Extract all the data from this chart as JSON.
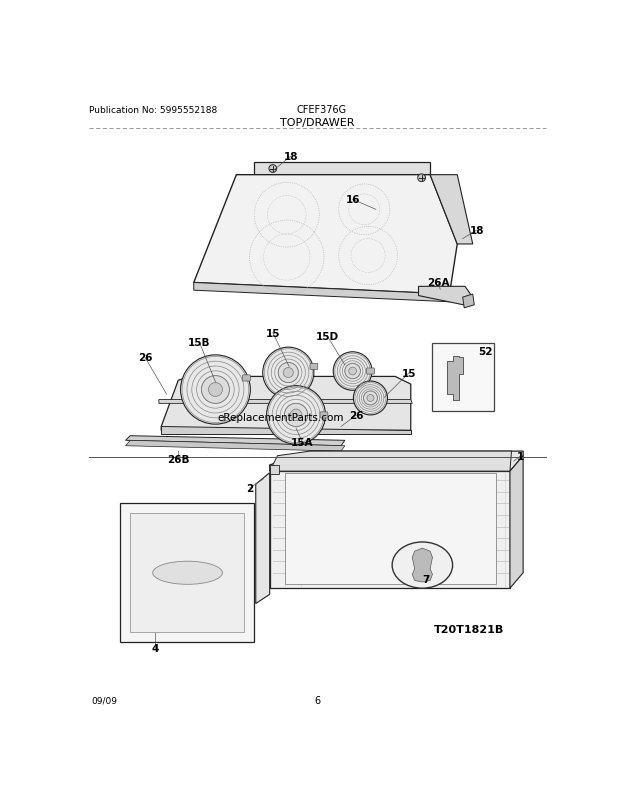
{
  "title": "TOP/DRAWER",
  "pub_no": "Publication No: 5995552188",
  "model": "CFEF376G",
  "date": "09/09",
  "page": "6",
  "diagram_id": "T20T1821B",
  "bg_color": "#ffffff",
  "lc": "#222222",
  "fill_light": "#f5f5f5",
  "fill_med": "#e8e8e8",
  "fill_dark": "#d0d0d0",
  "watermark": "eReplacementParts.com"
}
